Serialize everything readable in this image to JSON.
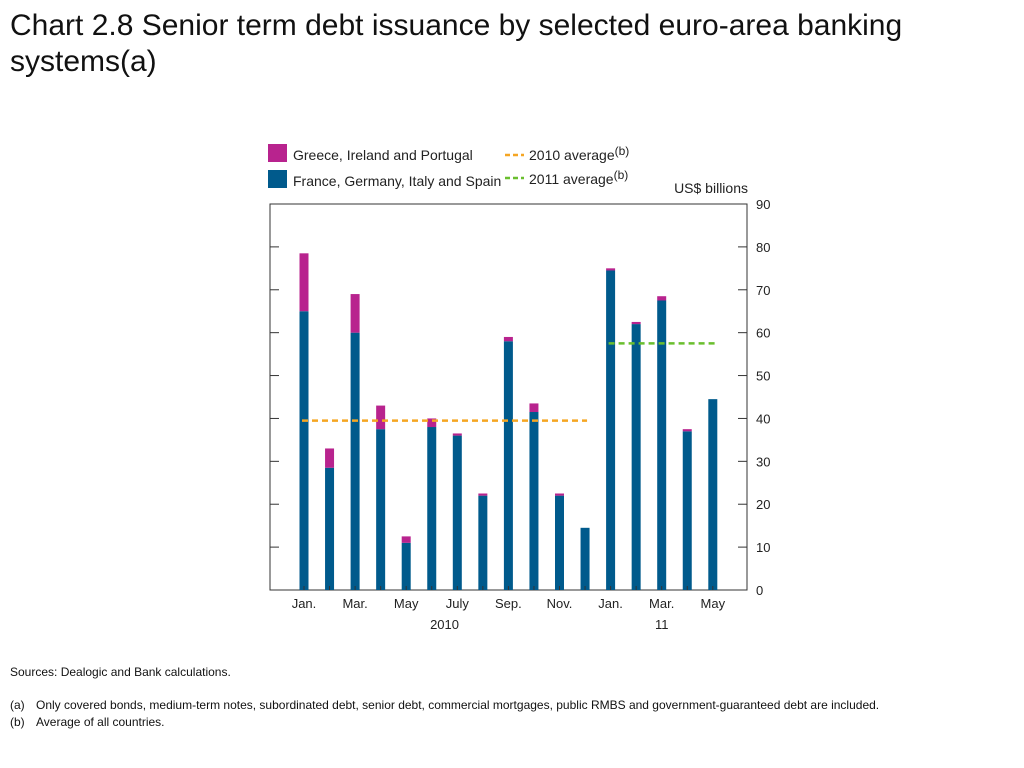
{
  "title": "Chart 2.8  Senior term debt issuance by selected euro-area banking systems(a)",
  "notes": {
    "sources": "Sources:  Dealogic and Bank calculations.",
    "footnotes": [
      {
        "marker": "(a)",
        "text": "Only covered bonds, medium-term notes, subordinated debt, senior debt, commercial mortgages, public RMBS and government-guaranteed debt are included."
      },
      {
        "marker": "(b)",
        "text": "Average of all countries."
      }
    ]
  },
  "chart_data": {
    "type": "bar",
    "stacked": true,
    "unit_label": "US$ billions",
    "ylim": [
      0,
      90
    ],
    "yticks": [
      0,
      10,
      20,
      30,
      40,
      50,
      60,
      70,
      80,
      90
    ],
    "y_axis_side": "right",
    "grid": false,
    "legend_position": "top",
    "months": [
      "Jan",
      "Feb",
      "Mar",
      "Apr",
      "May",
      "Jun",
      "Jul",
      "Aug",
      "Sep",
      "Oct",
      "Nov",
      "Dec",
      "Jan",
      "Feb",
      "Mar",
      "Apr",
      "May"
    ],
    "x_tick_labels": [
      {
        "index": 0,
        "label": "Jan."
      },
      {
        "index": 2,
        "label": "Mar."
      },
      {
        "index": 4,
        "label": "May"
      },
      {
        "index": 6,
        "label": "July"
      },
      {
        "index": 8,
        "label": "Sep."
      },
      {
        "index": 10,
        "label": "Nov."
      },
      {
        "index": 12,
        "label": "Jan."
      },
      {
        "index": 14,
        "label": "Mar."
      },
      {
        "index": 16,
        "label": "May"
      }
    ],
    "year_labels": [
      {
        "label": "2010",
        "from": 0,
        "to": 11
      },
      {
        "label": "11",
        "from": 12,
        "to": 16
      }
    ],
    "series": [
      {
        "name": "France, Germany, Italy and Spain",
        "color": "#005a8c",
        "values": [
          65,
          28.5,
          60,
          37.5,
          11,
          38,
          36,
          22,
          58,
          41.5,
          22,
          14.5,
          74.5,
          62,
          67.5,
          37,
          44.5
        ]
      },
      {
        "name": "Greece, Ireland and Portugal",
        "color": "#b8238e",
        "values": [
          13.5,
          4.5,
          9,
          5.5,
          1.5,
          2,
          0.5,
          0.5,
          1,
          2,
          0.5,
          0,
          0.5,
          0.5,
          1,
          0.5,
          0
        ]
      }
    ],
    "averages": [
      {
        "name": "2010 average",
        "superscript": "(b)",
        "value": 39.5,
        "from": 0,
        "to": 11,
        "color": "#f5a623"
      },
      {
        "name": "2011 average",
        "superscript": "(b)",
        "value": 57.5,
        "from": 12,
        "to": 16,
        "color": "#6abf2e"
      }
    ]
  }
}
